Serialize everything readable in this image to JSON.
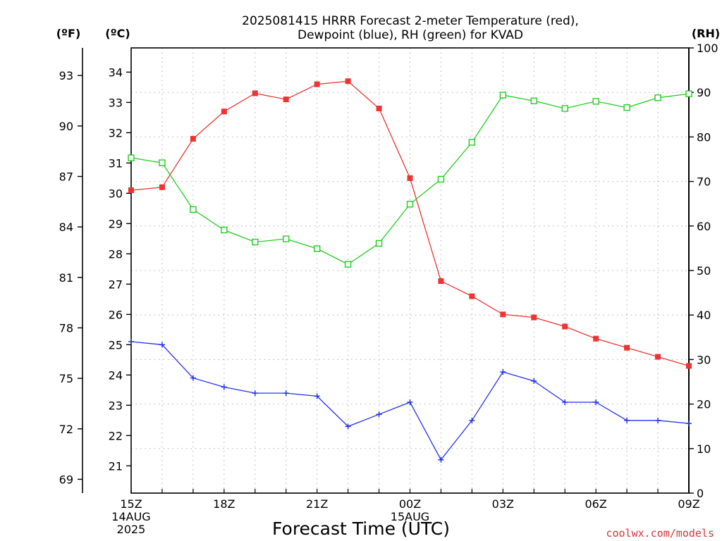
{
  "chart_data": {
    "type": "line",
    "title_lines": [
      "2025081415 HRRR Forecast 2-meter Temperature (red),",
      "Dewpoint (blue), RH (green) for KVAD"
    ],
    "xlabel": "Forecast Time (UTC)",
    "x": [
      "15Z",
      "16Z",
      "17Z",
      "18Z",
      "19Z",
      "20Z",
      "21Z",
      "22Z",
      "23Z",
      "00Z",
      "01Z",
      "02Z",
      "03Z",
      "04Z",
      "05Z",
      "06Z",
      "07Z",
      "08Z",
      "09Z"
    ],
    "x_ticks": [
      {
        "index": 0,
        "lines": [
          "15Z",
          "14AUG",
          "2025"
        ]
      },
      {
        "index": 3,
        "lines": [
          "18Z"
        ]
      },
      {
        "index": 6,
        "lines": [
          "21Z"
        ]
      },
      {
        "index": 9,
        "lines": [
          "00Z",
          "15AUG"
        ]
      },
      {
        "index": 12,
        "lines": [
          "03Z"
        ]
      },
      {
        "index": 15,
        "lines": [
          "06Z"
        ]
      },
      {
        "index": 18,
        "lines": [
          "09Z"
        ]
      }
    ],
    "axes": {
      "fahrenheit": {
        "label": "(ºF)",
        "ticks": [
          69,
          72,
          75,
          78,
          81,
          84,
          87,
          90,
          93
        ]
      },
      "celsius": {
        "label": "(ºC)",
        "ylim": [
          20.1,
          34.8
        ],
        "ticks": [
          21,
          22,
          23,
          24,
          25,
          26,
          27,
          28,
          29,
          30,
          31,
          32,
          33,
          34
        ]
      },
      "rh": {
        "label": "(RH)",
        "ylim": [
          0,
          100
        ],
        "ticks": [
          0,
          10,
          20,
          30,
          40,
          50,
          60,
          70,
          80,
          90,
          100
        ]
      }
    },
    "grid": true,
    "series": [
      {
        "name": "Temperature",
        "axis": "celsius",
        "color": "#ee3333",
        "marker": "filled-square",
        "values": [
          30.1,
          30.2,
          31.8,
          32.7,
          33.3,
          33.1,
          33.6,
          33.7,
          32.8,
          30.5,
          27.1,
          26.6,
          26.0,
          25.9,
          25.6,
          25.2,
          24.9,
          24.6,
          24.3
        ]
      },
      {
        "name": "Dewpoint",
        "axis": "celsius",
        "color": "#2233ee",
        "marker": "plus",
        "values": [
          25.1,
          25.0,
          23.9,
          23.6,
          23.4,
          23.4,
          23.3,
          22.3,
          22.7,
          23.1,
          21.2,
          22.5,
          24.1,
          23.8,
          23.1,
          23.1,
          22.5,
          22.5,
          22.4
        ]
      },
      {
        "name": "RH",
        "axis": "rh",
        "color": "#22cc22",
        "marker": "open-square",
        "values": [
          75.3,
          74.2,
          63.7,
          59.1,
          56.4,
          57.1,
          54.9,
          51.4,
          56.1,
          64.9,
          70.5,
          78.8,
          89.4,
          88.1,
          86.4,
          88.0,
          86.6,
          88.8,
          89.7
        ]
      }
    ]
  },
  "credit": "coolwx.com/models"
}
